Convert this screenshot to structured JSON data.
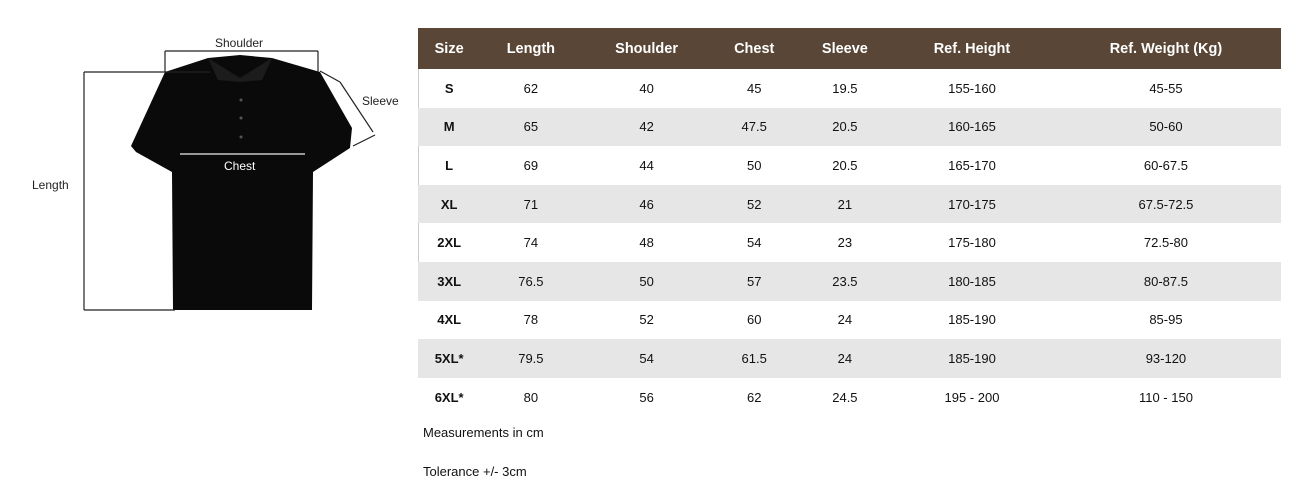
{
  "diagram": {
    "labels": {
      "shoulder": "Shoulder",
      "sleeve": "Sleeve",
      "chest": "Chest",
      "length": "Length"
    }
  },
  "table": {
    "headers": [
      "Size",
      "Length",
      "Shoulder",
      "Chest",
      "Sleeve",
      "Ref. Height",
      "Ref. Weight (Kg)"
    ],
    "rows": [
      [
        "S",
        "62",
        "40",
        "45",
        "19.5",
        "155-160",
        "45-55"
      ],
      [
        "M",
        "65",
        "42",
        "47.5",
        "20.5",
        "160-165",
        "50-60"
      ],
      [
        "L",
        "69",
        "44",
        "50",
        "20.5",
        "165-170",
        "60-67.5"
      ],
      [
        "XL",
        "71",
        "46",
        "52",
        "21",
        "170-175",
        "67.5-72.5"
      ],
      [
        "2XL",
        "74",
        "48",
        "54",
        "23",
        "175-180",
        "72.5-80"
      ],
      [
        "3XL",
        "76.5",
        "50",
        "57",
        "23.5",
        "180-185",
        "80-87.5"
      ],
      [
        "4XL",
        "78",
        "52",
        "60",
        "24",
        "185-190",
        "85-95"
      ],
      [
        "5XL*",
        "79.5",
        "54",
        "61.5",
        "24",
        "185-190",
        "93-120"
      ],
      [
        "6XL*",
        "80",
        "56",
        "62",
        "24.5",
        "195 - 200",
        "110 - 150"
      ]
    ],
    "header_color": "#5a4636"
  },
  "notes": [
    "Measurements in cm",
    "Tolerance +/- 3cm"
  ]
}
